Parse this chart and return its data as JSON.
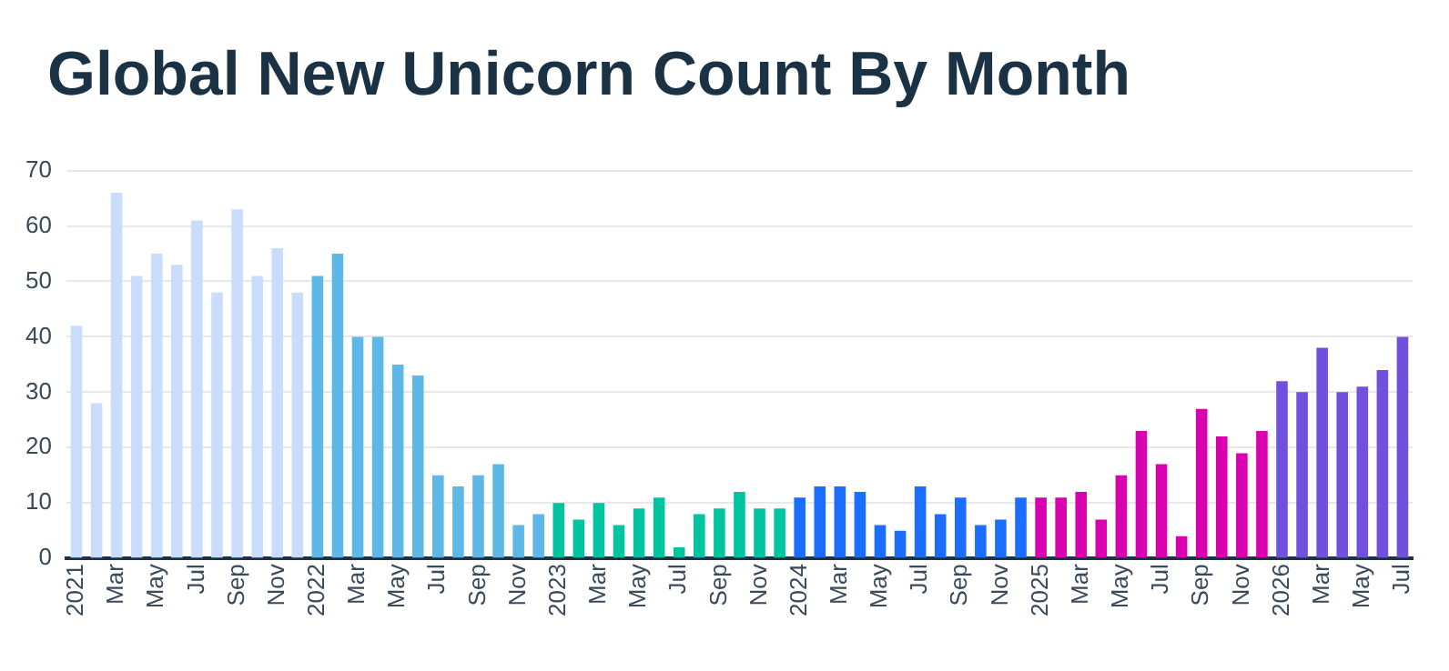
{
  "chart_data": {
    "type": "bar",
    "title": "Global New Unicorn Count By Month",
    "categories": [
      "2021",
      null,
      "Mar",
      null,
      "May",
      null,
      "Jul",
      null,
      "Sep",
      null,
      "Nov",
      null,
      "2022",
      null,
      "Mar",
      null,
      "May",
      null,
      "Jul",
      null,
      "Sep",
      null,
      "Nov",
      null,
      "2023",
      null,
      "Mar",
      null,
      "May",
      null,
      "Jul",
      null,
      "Sep",
      null,
      "Nov",
      null,
      "2024",
      null,
      "Mar",
      null,
      "May",
      null,
      "Jul",
      null,
      "Sep",
      null,
      "Nov",
      null,
      "2025",
      null,
      "Mar",
      null,
      "May",
      null,
      "Jul",
      null,
      "Sep",
      null,
      "Nov",
      null,
      "2026",
      null,
      "Mar",
      null,
      "May",
      null,
      "Jul"
    ],
    "values": [
      42,
      28,
      66,
      51,
      55,
      53,
      61,
      48,
      63,
      51,
      56,
      48,
      51,
      55,
      40,
      40,
      35,
      33,
      15,
      13,
      15,
      17,
      6,
      8,
      10,
      7,
      10,
      6,
      9,
      11,
      2,
      8,
      9,
      12,
      9,
      9,
      11,
      13,
      13,
      12,
      6,
      5,
      13,
      8,
      11,
      6,
      7,
      11,
      11,
      11,
      12,
      7,
      15,
      23,
      17,
      4,
      27,
      22,
      19,
      23,
      32,
      30,
      38,
      30,
      31,
      34,
      40
    ],
    "colors": [
      "#c9dcfb",
      "#c9dcfb",
      "#c9dcfb",
      "#c9dcfb",
      "#c9dcfb",
      "#c9dcfb",
      "#c9dcfb",
      "#c9dcfb",
      "#c9dcfb",
      "#c9dcfb",
      "#c9dcfb",
      "#c9dcfb",
      "#5db8e8",
      "#5db8e8",
      "#5db8e8",
      "#5db8e8",
      "#5db8e8",
      "#5db8e8",
      "#5db8e8",
      "#5db8e8",
      "#5db8e8",
      "#5db8e8",
      "#5db8e8",
      "#5db8e8",
      "#00c4a0",
      "#00c4a0",
      "#00c4a0",
      "#00c4a0",
      "#00c4a0",
      "#00c4a0",
      "#00c4a0",
      "#00c4a0",
      "#00c4a0",
      "#00c4a0",
      "#00c4a0",
      "#00c4a0",
      "#1a6dff",
      "#1a6dff",
      "#1a6dff",
      "#1a6dff",
      "#1a6dff",
      "#1a6dff",
      "#1a6dff",
      "#1a6dff",
      "#1a6dff",
      "#1a6dff",
      "#1a6dff",
      "#1a6dff",
      "#d900b0",
      "#d900b0",
      "#d900b0",
      "#d900b0",
      "#d900b0",
      "#d900b0",
      "#d900b0",
      "#d900b0",
      "#d900b0",
      "#d900b0",
      "#d900b0",
      "#d900b0",
      "#7050dc",
      "#7050dc",
      "#7050dc",
      "#7050dc",
      "#7050dc",
      "#7050dc",
      "#7050dc"
    ],
    "ylim": [
      0,
      70
    ],
    "yticks": [
      0,
      10,
      20,
      30,
      40,
      50,
      60,
      70
    ],
    "grid": "y"
  }
}
